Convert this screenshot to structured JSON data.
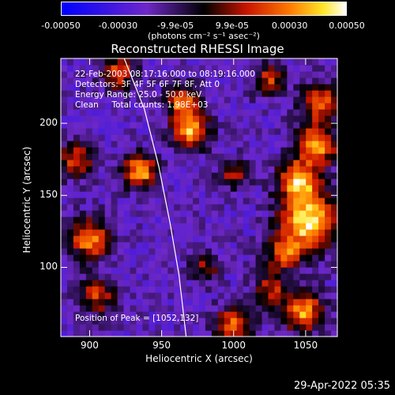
{
  "chart_data": {
    "type": "heatmap",
    "title": "Reconstructed RHESSI Image",
    "xlabel": "Heliocentric X (arcsec)",
    "ylabel": "Heliocentric Y (arcsec)",
    "xlim": [
      880,
      1072
    ],
    "ylim": [
      52,
      245
    ],
    "x_ticks": [
      900,
      950,
      1000,
      1050
    ],
    "y_ticks": [
      100,
      150,
      200
    ],
    "x_tick_labels": [
      "900",
      "950",
      "1000",
      "1050"
    ],
    "y_tick_labels": [
      "100",
      "150",
      "200"
    ],
    "colorbar": {
      "min": -0.0005,
      "max": 0.0005,
      "ticks": [
        -0.0005,
        -0.0003,
        -9.9e-05,
        9.9e-05,
        0.0003,
        0.0005
      ],
      "tick_labels": [
        "-0.00050",
        "-0.00030",
        "-9.9e-05",
        "9.9e-05",
        "0.00030",
        "0.00050"
      ],
      "unit_label": "(photons cm⁻² s⁻¹ asec⁻²)"
    },
    "annotations": [
      "22-Feb-2003 08:17:16.000 to 08:19:16.000",
      "Detectors: 3F 4F 5F 6F 7F 8F, Att 0",
      "Energy Range: 25.0 - 50.0 keV",
      "Clean     Total counts: 1.98E+03"
    ],
    "peak_label": "Position of Peak = [1052,132]",
    "peak": [
      1052,
      132
    ],
    "limb_curve": [
      [
        924,
        245
      ],
      [
        938,
        210
      ],
      [
        948,
        170
      ],
      [
        956,
        130
      ],
      [
        962,
        95
      ],
      [
        967,
        52
      ]
    ],
    "sources": [
      {
        "x": 1052,
        "y": 132,
        "amp": 1.0,
        "sigma": 13
      },
      {
        "x": 1045,
        "y": 160,
        "amp": 0.85,
        "sigma": 10
      },
      {
        "x": 1058,
        "y": 185,
        "amp": 0.8,
        "sigma": 10
      },
      {
        "x": 1060,
        "y": 215,
        "amp": 0.7,
        "sigma": 9
      },
      {
        "x": 1035,
        "y": 110,
        "amp": 0.6,
        "sigma": 9
      },
      {
        "x": 1048,
        "y": 70,
        "amp": 0.8,
        "sigma": 10
      },
      {
        "x": 1000,
        "y": 60,
        "amp": 0.7,
        "sigma": 9
      },
      {
        "x": 1025,
        "y": 85,
        "amp": 0.5,
        "sigma": 8
      },
      {
        "x": 970,
        "y": 195,
        "amp": 0.85,
        "sigma": 9
      },
      {
        "x": 965,
        "y": 215,
        "amp": 0.7,
        "sigma": 8
      },
      {
        "x": 935,
        "y": 167,
        "amp": 0.85,
        "sigma": 8
      },
      {
        "x": 900,
        "y": 120,
        "amp": 0.75,
        "sigma": 10
      },
      {
        "x": 890,
        "y": 175,
        "amp": 0.6,
        "sigma": 9
      },
      {
        "x": 905,
        "y": 80,
        "amp": 0.55,
        "sigma": 9
      },
      {
        "x": 920,
        "y": 235,
        "amp": 0.65,
        "sigma": 8
      },
      {
        "x": 980,
        "y": 100,
        "amp": 0.45,
        "sigma": 7
      },
      {
        "x": 1000,
        "y": 165,
        "amp": 0.5,
        "sigma": 7
      },
      {
        "x": 1025,
        "y": 230,
        "amp": 0.55,
        "sigma": 8
      }
    ]
  },
  "timestamp": "29-Apr-2022 05:35"
}
